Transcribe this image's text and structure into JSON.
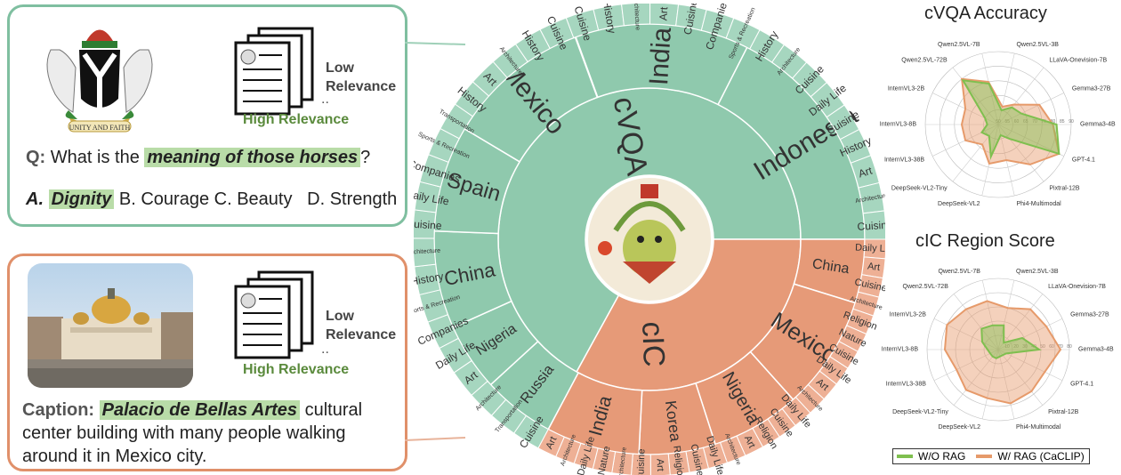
{
  "cvqa_example": {
    "q_prefix": "Q:",
    "q_text1": "What is the",
    "q_highlight": "meaning of those horses",
    "q_end": "?",
    "answer_a_prefix": "A.",
    "answer_a": "Dignity",
    "answer_b": "B. Courage",
    "answer_c": "C. Beauty",
    "answer_d": "D. Strength",
    "low_relevance": "Low Relevance",
    "high_relevance": "High Relevance",
    "emblem_motto": "UNITY AND FAITH"
  },
  "cic_example": {
    "caption_prefix": "Caption:",
    "caption_highlight": "Palacio de Bellas Artes",
    "caption_rest": "cultural center building with many people walking around it in Mexico city.",
    "low_relevance": "Low Relevance",
    "high_relevance": "High Relevance"
  },
  "sunburst": {
    "inner": [
      {
        "label": "cVQA",
        "color": "#8fc9ad"
      },
      {
        "label": "cIC",
        "color": "#e69a78"
      }
    ],
    "countries_cvqa": [
      "India",
      "Indonesia",
      "Russia",
      "Nigeria",
      "China",
      "Spain",
      "Mexico"
    ],
    "countries_cic": [
      "China",
      "Mexico",
      "Nigeria",
      "Korea",
      "India"
    ],
    "categories_cvqa": [
      "Cuisine",
      "Transportation",
      "Architecture",
      "Art",
      "Daily Life",
      "Companies",
      "Sports & Recreation",
      "History",
      "Architecture",
      "Cuisine",
      "Daily Life",
      "Companies",
      "Sports & Recreation",
      "Transportation",
      "History",
      "Art",
      "Architecture",
      "History",
      "Cuisine",
      "Cuisine",
      "History",
      "Architecture",
      "Art",
      "Cuisine",
      "Companies",
      "Sports & Recreation",
      "History",
      "Architecture",
      "Cuisine",
      "Daily Life",
      "Cuisine",
      "History",
      "Art",
      "Architecture",
      "Cuisine"
    ],
    "categories_cic": [
      "Daily Life",
      "Art",
      "Cuisine",
      "Architecture",
      "Religion",
      "Nature",
      "Cuisine",
      "Daily Life",
      "Art",
      "Architecture",
      "Daily Life",
      "Cuisine",
      "Religion",
      "Art",
      "Architecture",
      "Daily Life",
      "Cuisine",
      "Religion",
      "Art",
      "Cuisine",
      "Architecture",
      "Nature",
      "Daily Life",
      "Architecture",
      "Art"
    ]
  },
  "radar_cvqa": {
    "title": "cVQA Accuracy",
    "axes": [
      "Qwen2.5VL-3B",
      "LLaVA-Onevision-7B",
      "Gemma3-27B",
      "Gemma3-4B",
      "GPT-4.1",
      "Pixtral-12B",
      "Phi4-Multimodal",
      "DeepSeek-VL2",
      "DeepSeek-VL2-Tiny",
      "InternVL3-38B",
      "InternVL3-8B",
      "InternVL3-2B",
      "Qwen2.5VL-72B",
      "Qwen2.5VL-7B"
    ],
    "ticks": [
      "50",
      "55",
      "60",
      "65",
      "70",
      "75",
      "80",
      "85",
      "90"
    ],
    "rmin": 50,
    "rmax": 90,
    "series": [
      {
        "name": "W/O RAG",
        "color": "#7fbf4f",
        "values": [
          58,
          62,
          64,
          82,
          87,
          60,
          56,
          68,
          58,
          60,
          56,
          58,
          81,
          73
        ]
      },
      {
        "name": "W/ RAG (CaCLIP)",
        "color": "#e69a6a",
        "values": [
          60,
          64,
          75,
          80,
          87,
          78,
          70,
          72,
          64,
          70,
          70,
          70,
          82,
          74
        ]
      }
    ]
  },
  "radar_cic": {
    "title": "cIC Region Score",
    "axes": [
      "Qwen2.5VL-3B",
      "LLaVA-Onevision-7B",
      "Gemma3-27B",
      "Gemma3-4B",
      "GPT-4.1",
      "Pixtral-12B",
      "Phi4-Multimodal",
      "DeepSeek-VL2",
      "DeepSeek-VL2-Tiny",
      "InternVL3-38B",
      "InternVL3-8B",
      "InternVL3-2B",
      "Qwen2.5VL-72B",
      "Qwen2.5VL-7B"
    ],
    "ticks": [
      "10",
      "20",
      "30",
      "40",
      "50",
      "60",
      "70",
      "80"
    ],
    "rmin": 0,
    "rmax": 80,
    "series": [
      {
        "name": "W/O RAG",
        "color": "#7fbf4f",
        "values": [
          28,
          10,
          30,
          46,
          10,
          8,
          8,
          10,
          10,
          10,
          12,
          20,
          30,
          28
        ]
      },
      {
        "name": "W/ RAG (CaCLIP)",
        "color": "#e69a6a",
        "values": [
          48,
          58,
          60,
          70,
          58,
          60,
          62,
          56,
          58,
          52,
          60,
          64,
          58,
          56
        ]
      }
    ]
  },
  "legend": {
    "wo_rag": "W/O RAG",
    "w_rag": "W/ RAG (CaCLIP)",
    "wo_color": "#7fbf4f",
    "w_color": "#e69a6a"
  }
}
